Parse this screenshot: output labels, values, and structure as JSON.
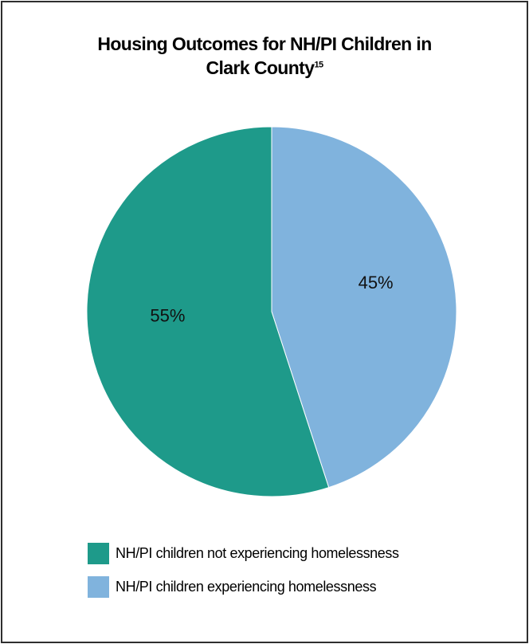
{
  "chart_data": {
    "type": "pie",
    "title": "Housing Outcomes for NH/PI Children in Clark County",
    "title_line1": "Housing Outcomes for NH/PI Children in",
    "title_line2": "Clark County",
    "title_footnote": "15",
    "slices": [
      {
        "label": "NH/PI children not experiencing homelessness",
        "value": 55,
        "value_label": "55%",
        "color": "#1e9a8a"
      },
      {
        "label": "NH/PI children experiencing homelessness",
        "value": 45,
        "value_label": "45%",
        "color": "#80b3dd"
      }
    ],
    "legend_position": "bottom-left"
  }
}
